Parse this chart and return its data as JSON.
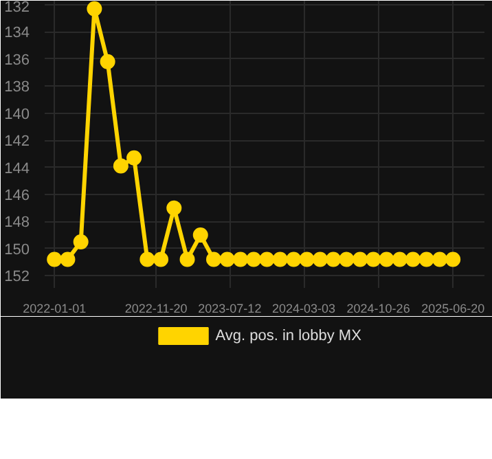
{
  "chart_data": {
    "type": "line",
    "x": [
      "2022-01-01",
      "2022-02-12",
      "2022-03-26",
      "2022-05-08",
      "2022-06-19",
      "2022-07-31",
      "2022-09-11",
      "2022-10-23",
      "2022-12-05",
      "2023-01-16",
      "2023-02-27",
      "2023-04-10",
      "2023-05-22",
      "2023-07-04",
      "2023-08-15",
      "2023-09-26",
      "2023-11-07",
      "2023-12-19",
      "2024-01-31",
      "2024-03-13",
      "2024-04-24",
      "2024-06-05",
      "2024-07-17",
      "2024-08-29",
      "2024-10-10",
      "2024-11-21",
      "2025-01-02",
      "2025-02-13",
      "2025-03-28",
      "2025-05-09",
      "2025-06-20"
    ],
    "series": [
      {
        "name": "Avg. pos. in lobby MX",
        "color": "#ffd400",
        "values": [
          150.8,
          150.8,
          149.5,
          132.3,
          136.2,
          143.9,
          143.3,
          150.8,
          150.8,
          147.0,
          150.8,
          149.0,
          150.8,
          150.8,
          150.8,
          150.8,
          150.8,
          150.8,
          150.8,
          150.8,
          150.8,
          150.8,
          150.8,
          150.8,
          150.8,
          150.8,
          150.8,
          150.8,
          150.8,
          150.8,
          150.8
        ]
      }
    ],
    "xlim": [
      "2021-12-01",
      "2025-09-28"
    ],
    "xticks": [
      "2022-01-01",
      "2022-11-20",
      "2023-07-12",
      "2024-03-03",
      "2024-10-26",
      "2025-06-20"
    ],
    "ylim": [
      152.9,
      131.7
    ],
    "yticks": [
      132,
      134,
      136,
      138,
      140,
      142,
      144,
      146,
      148,
      150,
      152
    ],
    "grid": true,
    "legend": "bottom",
    "marker": "circle",
    "line_style": "solid"
  }
}
